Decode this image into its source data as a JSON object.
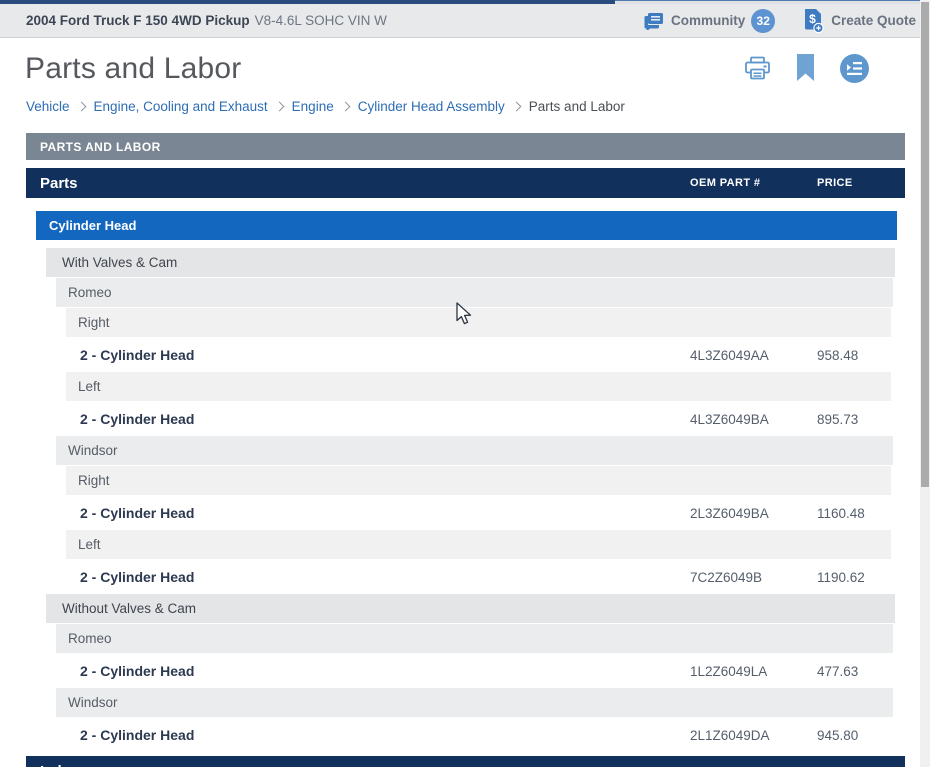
{
  "top_bar": {
    "vehicle_title": "2004 Ford Truck F 150 4WD Pickup",
    "vehicle_subtitle": "V8-4.6L SOHC VIN W",
    "community_label": "Community",
    "community_count": "32",
    "create_quote_label": "Create Quote"
  },
  "page": {
    "title": "Parts and Labor"
  },
  "breadcrumb": {
    "items": [
      {
        "label": "Vehicle"
      },
      {
        "label": "Engine, Cooling and Exhaust"
      },
      {
        "label": "Engine"
      },
      {
        "label": "Cylinder Head Assembly"
      },
      {
        "label": "Parts and Labor"
      }
    ]
  },
  "section": {
    "header": "PARTS AND LABOR"
  },
  "table": {
    "title": "Parts",
    "columns": {
      "oem": "OEM PART #",
      "price": "PRICE"
    },
    "group": "Cylinder Head",
    "rows": [
      {
        "type": "sub",
        "level": 2,
        "label": "With Valves & Cam"
      },
      {
        "type": "sub",
        "level": 3,
        "label": "Romeo"
      },
      {
        "type": "sub",
        "level": 4,
        "label": "Right"
      },
      {
        "type": "part",
        "label": "2 - Cylinder Head",
        "oem": "4L3Z6049AA",
        "price": "958.48"
      },
      {
        "type": "sub",
        "level": 4,
        "label": "Left"
      },
      {
        "type": "part",
        "label": "2 - Cylinder Head",
        "oem": "4L3Z6049BA",
        "price": "895.73"
      },
      {
        "type": "sub",
        "level": 3,
        "label": "Windsor"
      },
      {
        "type": "sub",
        "level": 4,
        "label": "Right"
      },
      {
        "type": "part",
        "label": "2 - Cylinder Head",
        "oem": "2L3Z6049BA",
        "price": "1160.48"
      },
      {
        "type": "sub",
        "level": 4,
        "label": "Left"
      },
      {
        "type": "part",
        "label": "2 - Cylinder Head",
        "oem": "7C2Z6049B",
        "price": "1190.62"
      },
      {
        "type": "sub",
        "level": 2,
        "label": "Without Valves & Cam"
      },
      {
        "type": "sub",
        "level": 3,
        "label": "Romeo"
      },
      {
        "type": "part",
        "label": "2 - Cylinder Head",
        "oem": "1L2Z6049LA",
        "price": "477.63"
      },
      {
        "type": "sub",
        "level": 3,
        "label": "Windsor"
      },
      {
        "type": "part",
        "label": "2 - Cylinder Head",
        "oem": "2L1Z6049DA",
        "price": "945.80"
      }
    ]
  },
  "labor": {
    "title": "Labor"
  },
  "icons": {
    "community": "chat-icon",
    "create_quote": "dollar-document-plus-icon",
    "print": "printer-icon",
    "bookmark": "bookmark-icon",
    "index": "list-index-icon"
  },
  "colors": {
    "navy_header": "#12305c",
    "blue_group": "#1467bf",
    "slate_section": "#7a8693",
    "icon_blue": "#5e96ce",
    "badge_blue": "#5e93d1",
    "link_blue": "#2e6db4",
    "progress_navy": "#2a4b7d"
  }
}
